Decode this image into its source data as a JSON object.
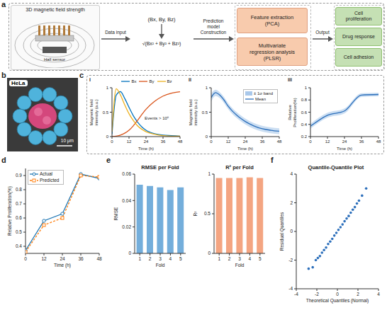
{
  "panel_letters": [
    "a",
    "b",
    "c",
    "d",
    "e",
    "f"
  ],
  "diagram": {
    "input_title": "3D magnetic field strength",
    "sensor_label": "Hall sensor",
    "arrows": [
      "Data input",
      "Prediction model Construction",
      "Output"
    ],
    "vector": "(Bx, By, Bz)",
    "magnitude": "√(Bx² + By² + Bz²)",
    "model_steps": [
      "Feature extraction (PCA)",
      "Multivariate regression analysis (PLSR)"
    ],
    "outputs": [
      "Cell proliferation",
      "Drug response",
      "Cell adhesion"
    ]
  },
  "image": {
    "label": "HeLa",
    "scale_bar": "10 μm"
  },
  "chart_data": [
    {
      "type": "line",
      "subpanel": "i",
      "xlabel": "Time (h)",
      "ylabel": "Magnetic field intensity (a.u.)",
      "annotation": "Events > 10⁶",
      "legend": "top",
      "x": [
        0,
        3,
        6,
        9,
        12,
        15,
        18,
        21,
        24,
        30,
        36,
        42,
        48
      ],
      "xlim": [
        0,
        48
      ],
      "xticks": [
        0,
        12,
        24,
        36,
        48
      ],
      "ylim": [
        0,
        1
      ],
      "yticks": [
        0,
        0.5,
        1
      ],
      "series": [
        {
          "name": "Bx",
          "type": "line",
          "color": "#0072BD",
          "values": [
            0.05,
            0.85,
            0.92,
            0.78,
            0.6,
            0.43,
            0.3,
            0.2,
            0.13,
            0.06,
            0.03,
            0.02,
            0.01
          ]
        },
        {
          "name": "By",
          "type": "line",
          "color": "#D95319",
          "values": [
            0,
            0.01,
            0.03,
            0.07,
            0.13,
            0.22,
            0.33,
            0.45,
            0.56,
            0.72,
            0.83,
            0.89,
            0.92
          ]
        },
        {
          "name": "Bz",
          "type": "line",
          "color": "#EDB120",
          "values": [
            0.1,
            0.98,
            0.85,
            0.65,
            0.47,
            0.33,
            0.22,
            0.15,
            0.1,
            0.05,
            0.02,
            0.01,
            0.01
          ]
        }
      ]
    },
    {
      "type": "line",
      "subpanel": "ii",
      "xlabel": "Time (h)",
      "ylabel": "Magnetic field intensity (a.u.)",
      "legend": "upper right",
      "x": [
        0,
        3,
        6,
        9,
        12,
        15,
        18,
        21,
        24,
        30,
        36,
        42,
        48
      ],
      "xlim": [
        0,
        48
      ],
      "xticks": [
        0,
        12,
        24,
        36,
        48
      ],
      "ylim": [
        0,
        1
      ],
      "yticks": [
        0,
        0.5,
        1
      ],
      "series": [
        {
          "name": "± 1σ band",
          "type": "area",
          "color": "#a9c8ea",
          "lower": [
            0.72,
            0.83,
            0.79,
            0.69,
            0.56,
            0.46,
            0.38,
            0.31,
            0.25,
            0.16,
            0.1,
            0.07,
            0.05
          ],
          "upper": [
            0.88,
            0.96,
            0.91,
            0.81,
            0.68,
            0.58,
            0.5,
            0.43,
            0.37,
            0.28,
            0.22,
            0.19,
            0.17
          ]
        },
        {
          "name": "Mean",
          "type": "line",
          "color": "#2c6fbb",
          "values": [
            0.8,
            0.9,
            0.85,
            0.75,
            0.62,
            0.52,
            0.44,
            0.37,
            0.31,
            0.22,
            0.16,
            0.13,
            0.11
          ]
        }
      ]
    },
    {
      "type": "line",
      "subpanel": "iii",
      "xlabel": "Time (h)",
      "ylabel": "Relative Proliferation(%)",
      "x": [
        0,
        12,
        24,
        36,
        48
      ],
      "xlim": [
        0,
        48
      ],
      "xticks": [
        0,
        12,
        24,
        36,
        48
      ],
      "ylim": [
        0.2,
        1
      ],
      "yticks": [
        0.2,
        0.4,
        0.6,
        0.8,
        1
      ],
      "series": [
        {
          "type": "area",
          "color": "#a9c8ea",
          "lower": [
            0.33,
            0.51,
            0.58,
            0.85,
            0.86
          ],
          "upper": [
            0.41,
            0.59,
            0.66,
            0.91,
            0.92
          ]
        },
        {
          "type": "line",
          "color": "#2c6fbb",
          "values": [
            0.37,
            0.55,
            0.62,
            0.88,
            0.89
          ]
        }
      ]
    },
    {
      "type": "line",
      "xlabel": "Time (h)",
      "ylabel": "Relative Proliferation(%)",
      "legend": "upper left",
      "x": [
        0,
        12,
        24,
        36,
        48
      ],
      "xlim": [
        0,
        48
      ],
      "xticks": [
        0,
        12,
        24,
        36,
        48
      ],
      "ylim": [
        0.35,
        0.95
      ],
      "yticks": [
        0.4,
        0.5,
        0.6,
        0.7,
        0.8,
        0.9
      ],
      "series": [
        {
          "name": "Actual",
          "type": "line",
          "color": "#1f77b4",
          "marker": "circle",
          "line_style": "solid",
          "values": [
            0.37,
            0.58,
            0.63,
            0.91,
            0.88
          ]
        },
        {
          "name": "Predicted",
          "type": "line",
          "color": "#ff7f0e",
          "marker": "square",
          "line_style": "dashed",
          "values": [
            0.36,
            0.55,
            0.6,
            0.9,
            0.89
          ]
        }
      ]
    },
    {
      "type": "bar",
      "title": "RMSE per Fold",
      "xlabel": "Fold",
      "ylabel": "RMSE",
      "categories": [
        "1",
        "2",
        "3",
        "4",
        "5"
      ],
      "values": [
        0.052,
        0.051,
        0.05,
        0.048,
        0.05
      ],
      "color": "#74aedb",
      "ylim": [
        0,
        0.06
      ],
      "yticks": [
        0,
        0.02,
        0.04,
        0.06
      ]
    },
    {
      "type": "bar",
      "title": "R² per Fold",
      "xlabel": "Fold",
      "ylabel": "R²",
      "categories": [
        "1",
        "2",
        "3",
        "4",
        "5"
      ],
      "values": [
        0.95,
        0.95,
        0.95,
        0.96,
        0.95
      ],
      "color": "#f4a582",
      "ylim": [
        0,
        1
      ],
      "yticks": [
        0,
        0.5,
        1
      ]
    },
    {
      "type": "scatter",
      "title": "Quantile-Quantile Plot",
      "xlabel": "Theoretical Quantiles (Normal)",
      "ylabel": "Residual Quantiles",
      "marker": "circle",
      "color": "#2c6fbb",
      "x": [
        -2.8,
        -2.4,
        -2.1,
        -1.9,
        -1.7,
        -1.5,
        -1.3,
        -1.1,
        -0.9,
        -0.7,
        -0.5,
        -0.3,
        -0.1,
        0.1,
        0.3,
        0.5,
        0.7,
        0.9,
        1.1,
        1.3,
        1.5,
        1.7,
        1.9,
        2.1,
        2.4,
        2.8
      ],
      "values": [
        -2.6,
        -2.5,
        -2.0,
        -1.85,
        -1.72,
        -1.48,
        -1.3,
        -1.12,
        -0.88,
        -0.7,
        -0.52,
        -0.29,
        -0.1,
        0.11,
        0.3,
        0.49,
        0.71,
        0.9,
        1.08,
        1.31,
        1.52,
        1.7,
        1.95,
        2.15,
        2.5,
        3.0
      ],
      "xlim": [
        -4,
        4
      ],
      "xticks": [
        -4,
        -2,
        0,
        2,
        4
      ],
      "ylim": [
        -4,
        4
      ],
      "yticks": [
        -4,
        -2,
        0,
        2,
        4
      ]
    }
  ]
}
